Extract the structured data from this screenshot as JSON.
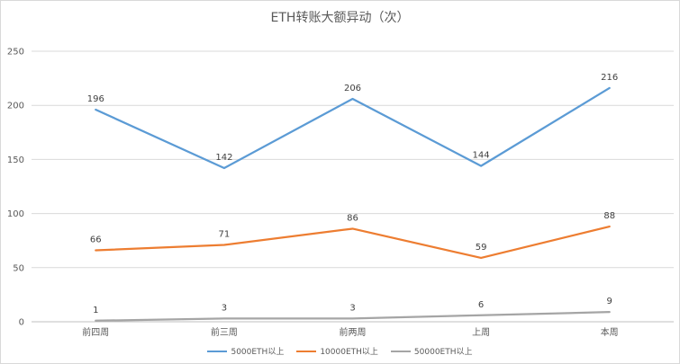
{
  "chart_data": {
    "type": "line",
    "title": "ETH转账大额异动（次）",
    "categories": [
      "前四周",
      "前三周",
      "前两周",
      "上周",
      "本周"
    ],
    "ylim": [
      0,
      250
    ],
    "yticks": [
      0,
      50,
      100,
      150,
      200,
      250
    ],
    "grid": true,
    "legend_position": "bottom",
    "series": [
      {
        "name": "5000ETH以上",
        "values": [
          196,
          142,
          206,
          144,
          216
        ],
        "color": "#5b9bd5"
      },
      {
        "name": "10000ETH以上",
        "values": [
          66,
          71,
          86,
          59,
          88
        ],
        "color": "#ed7d31"
      },
      {
        "name": "50000ETH以上",
        "values": [
          1,
          3,
          3,
          6,
          9
        ],
        "color": "#a5a5a5"
      }
    ]
  }
}
